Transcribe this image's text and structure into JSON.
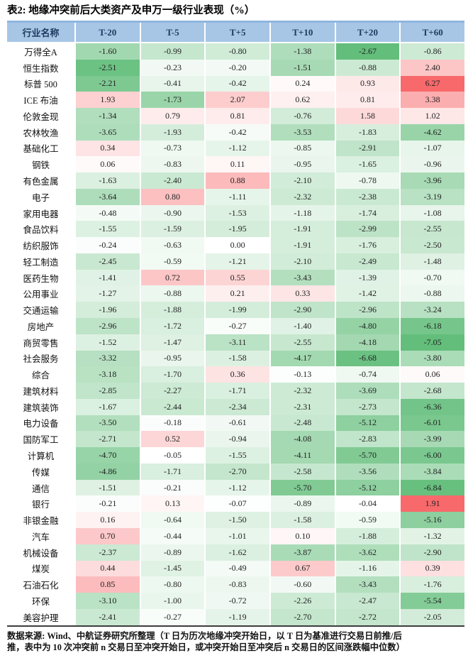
{
  "title": "表2: 地缘冲突前后大类资产及申万一级行业表现（%）",
  "footer": {
    "lines": [
      "数据来源: Wind、中航证券研究所整理（T 日为历次地缘冲突开始日，以 T 日为基准进行交易日前推/后",
      "推，表中为 10 次冲突前 n 交易日至冲突开始日，或冲突开始日至冲突后 n 交易日的区间涨跌幅中位数）"
    ]
  },
  "colors": {
    "header_bg": "#A7C6E6",
    "header_top_border": "#8FB6DF",
    "header_text": "#1E3A5F",
    "scale_green": "#63BE7B",
    "scale_mid": "#FFFFFF",
    "scale_red": "#F8696B",
    "table_bottom_border": "#3D3D3D"
  },
  "chart_data": {
    "type": "heatmap",
    "title": "表2: 地缘冲突前后大类资产及申万一级行业表现（%）",
    "columns": [
      "行业名称",
      "T-20",
      "T-5",
      "T+5",
      "T+10",
      "T+20",
      "T+60"
    ],
    "color_scale_note": "green=negative, white=0, red=positive; scaled separately for asset block and industry block",
    "rows": [
      {
        "name": "万得全A",
        "block": "asset",
        "values": [
          "-1.60",
          "-0.99",
          "-0.80",
          "-1.38",
          "-2.67",
          "-0.86"
        ]
      },
      {
        "name": "恒生指数",
        "block": "asset",
        "values": [
          "-2.51",
          "-0.23",
          "-0.20",
          "-1.51",
          "-0.88",
          "2.40"
        ]
      },
      {
        "name": "标普 500",
        "block": "asset",
        "values": [
          "-2.21",
          "-0.41",
          "-0.42",
          "0.24",
          "0.93",
          "6.27"
        ]
      },
      {
        "name": "ICE 布油",
        "block": "asset",
        "values": [
          "1.93",
          "-1.73",
          "2.07",
          "0.62",
          "0.81",
          "3.38"
        ]
      },
      {
        "name": "伦敦金现",
        "block": "asset",
        "values": [
          "-1.34",
          "0.79",
          "0.81",
          "-0.76",
          "1.58",
          "1.02"
        ]
      },
      {
        "name": "农林牧渔",
        "block": "industry",
        "values": [
          "-3.65",
          "-1.93",
          "-0.42",
          "-3.53",
          "-1.83",
          "-4.62"
        ]
      },
      {
        "name": "基础化工",
        "block": "industry",
        "values": [
          "0.34",
          "-0.73",
          "-1.12",
          "-0.85",
          "-2.91",
          "-1.07"
        ]
      },
      {
        "name": "钢铁",
        "block": "industry",
        "values": [
          "0.06",
          "-0.83",
          "0.11",
          "-0.95",
          "-1.65",
          "-0.96"
        ]
      },
      {
        "name": "有色金属",
        "block": "industry",
        "values": [
          "-1.63",
          "-2.40",
          "0.88",
          "-2.10",
          "-0.78",
          "-3.96"
        ]
      },
      {
        "name": "电子",
        "block": "industry",
        "values": [
          "-3.64",
          "0.80",
          "-1.11",
          "-2.32",
          "-2.38",
          "-3.19"
        ]
      },
      {
        "name": "家用电器",
        "block": "industry",
        "values": [
          "-0.48",
          "-0.90",
          "-1.53",
          "-1.18",
          "-1.74",
          "-1.08"
        ]
      },
      {
        "name": "食品饮料",
        "block": "industry",
        "values": [
          "-1.55",
          "-1.59",
          "-1.95",
          "-1.91",
          "-2.99",
          "-2.55"
        ]
      },
      {
        "name": "纺织服饰",
        "block": "industry",
        "values": [
          "-0.24",
          "-0.63",
          "0.00",
          "-1.91",
          "-1.76",
          "-2.50"
        ]
      },
      {
        "name": "轻工制造",
        "block": "industry",
        "values": [
          "-2.45",
          "-0.59",
          "-1.21",
          "-2.10",
          "-2.49",
          "-1.48"
        ]
      },
      {
        "name": "医药生物",
        "block": "industry",
        "values": [
          "-1.41",
          "0.72",
          "0.55",
          "-3.43",
          "-1.39",
          "-0.70"
        ]
      },
      {
        "name": "公用事业",
        "block": "industry",
        "values": [
          "-1.27",
          "-0.88",
          "0.21",
          "0.33",
          "-1.42",
          "-0.88"
        ]
      },
      {
        "name": "交通运输",
        "block": "industry",
        "values": [
          "-1.96",
          "-1.88",
          "-1.99",
          "-2.90",
          "-2.96",
          "-3.24"
        ]
      },
      {
        "name": "房地产",
        "block": "industry",
        "values": [
          "-2.96",
          "-1.72",
          "-0.27",
          "-1.40",
          "-4.80",
          "-6.18"
        ]
      },
      {
        "name": "商贸零售",
        "block": "industry",
        "values": [
          "-1.52",
          "-1.47",
          "-3.11",
          "-2.55",
          "-4.18",
          "-7.05"
        ]
      },
      {
        "name": "社会服务",
        "block": "industry",
        "values": [
          "-3.32",
          "-0.95",
          "-1.58",
          "-4.17",
          "-6.68",
          "-3.80"
        ]
      },
      {
        "name": "综合",
        "block": "industry",
        "values": [
          "-3.18",
          "-1.70",
          "0.36",
          "-0.13",
          "-0.74",
          "0.06"
        ]
      },
      {
        "name": "建筑材料",
        "block": "industry",
        "values": [
          "-2.85",
          "-2.27",
          "-1.71",
          "-2.32",
          "-3.69",
          "-2.68"
        ]
      },
      {
        "name": "建筑装饰",
        "block": "industry",
        "values": [
          "-1.67",
          "-2.44",
          "-2.34",
          "-2.31",
          "-2.73",
          "-6.36"
        ]
      },
      {
        "name": "电力设备",
        "block": "industry",
        "values": [
          "-3.50",
          "-0.18",
          "-0.61",
          "-2.48",
          "-5.12",
          "-6.01"
        ]
      },
      {
        "name": "国防军工",
        "block": "industry",
        "values": [
          "-2.71",
          "0.52",
          "-0.94",
          "-4.08",
          "-2.83",
          "-3.99"
        ]
      },
      {
        "name": "计算机",
        "block": "industry",
        "values": [
          "-4.70",
          "-0.05",
          "-1.55",
          "-4.11",
          "-5.70",
          "-6.00"
        ]
      },
      {
        "name": "传媒",
        "block": "industry",
        "values": [
          "-4.86",
          "-1.71",
          "-2.70",
          "-2.58",
          "-3.56",
          "-3.84"
        ]
      },
      {
        "name": "通信",
        "block": "industry",
        "values": [
          "-1.51",
          "-0.21",
          "-1.12",
          "-5.70",
          "-5.12",
          "-6.84"
        ]
      },
      {
        "name": "银行",
        "block": "industry",
        "values": [
          "-0.21",
          "0.13",
          "-0.07",
          "-0.89",
          "-0.04",
          "1.91"
        ]
      },
      {
        "name": "非银金融",
        "block": "industry",
        "values": [
          "0.16",
          "-0.64",
          "-1.50",
          "-1.58",
          "-0.59",
          "-5.16"
        ]
      },
      {
        "name": "汽车",
        "block": "industry",
        "values": [
          "0.70",
          "-0.44",
          "-1.01",
          "0.10",
          "-1.88",
          "-1.32"
        ]
      },
      {
        "name": "机械设备",
        "block": "industry",
        "values": [
          "-2.37",
          "-0.89",
          "-1.62",
          "-3.87",
          "-3.62",
          "-2.90"
        ]
      },
      {
        "name": "煤炭",
        "block": "industry",
        "values": [
          "0.44",
          "-1.45",
          "-0.49",
          "0.67",
          "-1.16",
          "0.39"
        ]
      },
      {
        "name": "石油石化",
        "block": "industry",
        "values": [
          "0.85",
          "-0.80",
          "-0.83",
          "-0.60",
          "-3.43",
          "-1.76"
        ]
      },
      {
        "name": "环保",
        "block": "industry",
        "values": [
          "-3.10",
          "-1.00",
          "-0.72",
          "-2.26",
          "-2.47",
          "-5.54"
        ]
      },
      {
        "name": "美容护理",
        "block": "industry",
        "values": [
          "-2.41",
          "-0.27",
          "-1.19",
          "-2.70",
          "-2.72",
          "-2.05"
        ]
      }
    ]
  }
}
